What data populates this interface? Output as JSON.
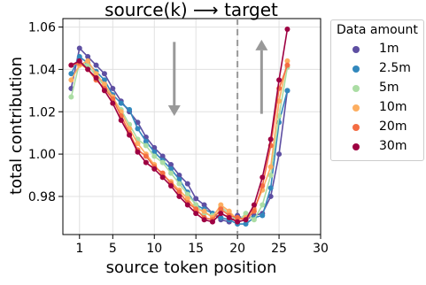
{
  "chart_data": {
    "type": "line",
    "title": "source(k) ⟶ target",
    "xlabel": "source token position",
    "ylabel": "total contribution",
    "xlim": [
      -1,
      30
    ],
    "ylim": [
      0.962,
      1.064
    ],
    "xticks": [
      1,
      5,
      10,
      15,
      20,
      25,
      30
    ],
    "yticks": [
      0.98,
      1.0,
      1.02,
      1.04,
      1.06
    ],
    "ytick_labels": [
      "0.98",
      "1.00",
      "1.02",
      "1.04",
      "1.06"
    ],
    "grid": true,
    "target_line_x": 20,
    "legend": {
      "title": "Data amount",
      "placement": "outside-right"
    },
    "arrows": [
      {
        "direction": "down",
        "x": 12.4,
        "y_from": 1.053,
        "y_to": 1.018
      },
      {
        "direction": "up",
        "x": 22.9,
        "y_from": 1.019,
        "y_to": 1.054
      }
    ],
    "x": [
      0,
      1,
      2,
      3,
      4,
      5,
      6,
      7,
      8,
      9,
      10,
      11,
      12,
      13,
      14,
      15,
      16,
      17,
      18,
      19,
      20,
      21,
      22,
      23,
      24,
      25,
      26
    ],
    "series": [
      {
        "name": "1m",
        "color": "#5e4fa2",
        "values": [
          1.031,
          1.05,
          1.046,
          1.042,
          1.038,
          1.031,
          1.025,
          1.02,
          1.015,
          1.008,
          1.003,
          0.999,
          0.995,
          0.99,
          0.986,
          0.979,
          0.976,
          0.972,
          0.969,
          0.968,
          0.971,
          0.969,
          0.971,
          0.972,
          0.98,
          1.0,
          1.03
        ]
      },
      {
        "name": "2.5m",
        "color": "#3288bd",
        "values": [
          1.038,
          1.046,
          1.043,
          1.039,
          1.035,
          1.028,
          1.024,
          1.021,
          1.012,
          1.006,
          1.001,
          0.997,
          0.993,
          0.988,
          0.982,
          0.976,
          0.974,
          0.972,
          0.97,
          0.969,
          0.967,
          0.967,
          0.97,
          0.971,
          0.984,
          1.015,
          1.03
        ]
      },
      {
        "name": "5m",
        "color": "#abdda4",
        "values": [
          1.027,
          1.043,
          1.042,
          1.037,
          1.032,
          1.026,
          1.021,
          1.014,
          1.007,
          1.004,
          0.999,
          0.996,
          0.991,
          0.986,
          0.981,
          0.976,
          0.972,
          0.971,
          0.975,
          0.972,
          0.968,
          0.972,
          0.969,
          0.976,
          0.99,
          1.018,
          1.041
        ]
      },
      {
        "name": "10m",
        "color": "#fdae61",
        "values": [
          1.035,
          1.042,
          1.044,
          1.038,
          1.033,
          1.027,
          1.02,
          1.012,
          1.005,
          1.0,
          0.995,
          0.99,
          0.987,
          0.983,
          0.979,
          0.974,
          0.973,
          0.97,
          0.976,
          0.973,
          0.969,
          0.97,
          0.974,
          0.983,
          0.994,
          1.025,
          1.044
        ]
      },
      {
        "name": "20m",
        "color": "#f46d43",
        "values": [
          1.042,
          1.043,
          1.04,
          1.035,
          1.031,
          1.026,
          1.018,
          1.01,
          1.002,
          0.999,
          0.994,
          0.991,
          0.986,
          0.982,
          0.977,
          0.974,
          0.97,
          0.969,
          0.974,
          0.971,
          0.97,
          0.969,
          0.973,
          0.985,
          1.004,
          1.031,
          1.042
        ]
      },
      {
        "name": "30m",
        "color": "#9e0142",
        "values": [
          1.042,
          1.044,
          1.04,
          1.036,
          1.03,
          1.024,
          1.016,
          1.009,
          1.001,
          0.996,
          0.993,
          0.989,
          0.985,
          0.98,
          0.976,
          0.972,
          0.969,
          0.968,
          0.972,
          0.97,
          0.968,
          0.969,
          0.976,
          0.989,
          1.007,
          1.035,
          1.059
        ]
      }
    ]
  }
}
